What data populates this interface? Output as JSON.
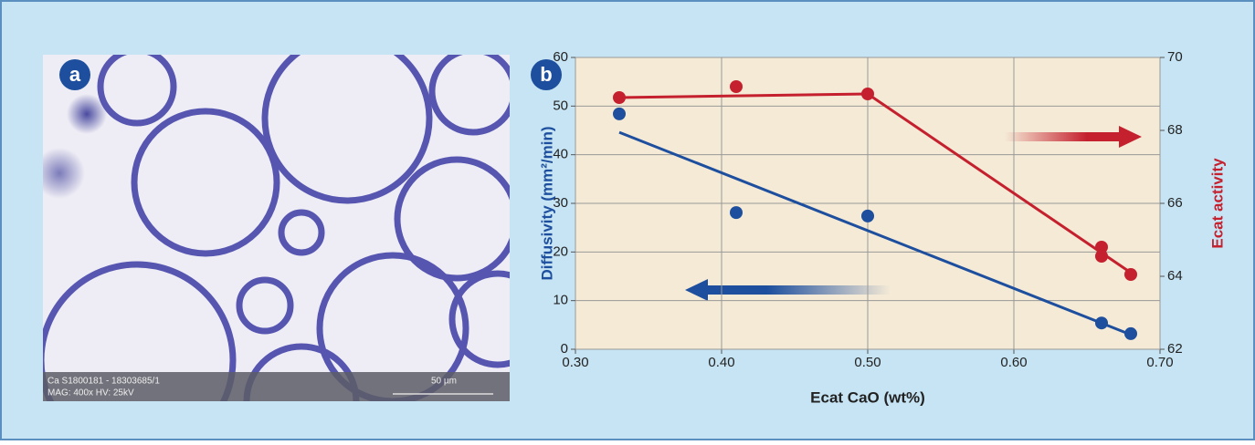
{
  "panel_a": {
    "badge": "a",
    "caption": [
      "Ca S1800181 - 18303685/1",
      "MAG: 400x HV: 25kV"
    ],
    "scale_bar": "50 µm"
  },
  "chart_data": {
    "type": "scatter",
    "panel_label": "b",
    "xlabel": "Ecat CaO (wt%)",
    "ylabel": "Diffusivity (mm²/min)",
    "y2label": "Ecat activity",
    "xlim": [
      0.3,
      0.7
    ],
    "xticks": [
      {
        "value": 0.3,
        "label": "0.30"
      },
      {
        "value": 0.4,
        "label": "0.40"
      },
      {
        "value": 0.5,
        "label": "0.50"
      },
      {
        "value": 0.6,
        "label": "0.60"
      },
      {
        "value": 0.7,
        "label": "0.70"
      }
    ],
    "ylim": [
      0,
      60
    ],
    "yticks": [
      0,
      10,
      20,
      30,
      40,
      50,
      60
    ],
    "y2lim": [
      62,
      70
    ],
    "y2ticks": [
      62,
      64,
      66,
      68,
      70
    ],
    "grid": true,
    "series": [
      {
        "color": "#1d4f9e",
        "x": [
          0.33,
          0.41,
          0.5,
          0.66,
          0.68
        ],
        "values": [
          48.4,
          28.1,
          27.4,
          5.4,
          3.2
        ],
        "fit": {
          "x": [
            0.33,
            0.68
          ],
          "values": [
            44.6,
            3.0
          ]
        }
      },
      {
        "color": "#c4202e",
        "axis": "y2",
        "x": [
          0.33,
          0.41,
          0.5,
          0.66,
          0.66,
          0.68
        ],
        "values": [
          68.9,
          69.2,
          69.0,
          64.8,
          64.55,
          64.05
        ],
        "fit": {
          "x": [
            0.33,
            0.5,
            0.68
          ],
          "values": [
            68.9,
            69.0,
            64.1
          ]
        }
      }
    ]
  }
}
